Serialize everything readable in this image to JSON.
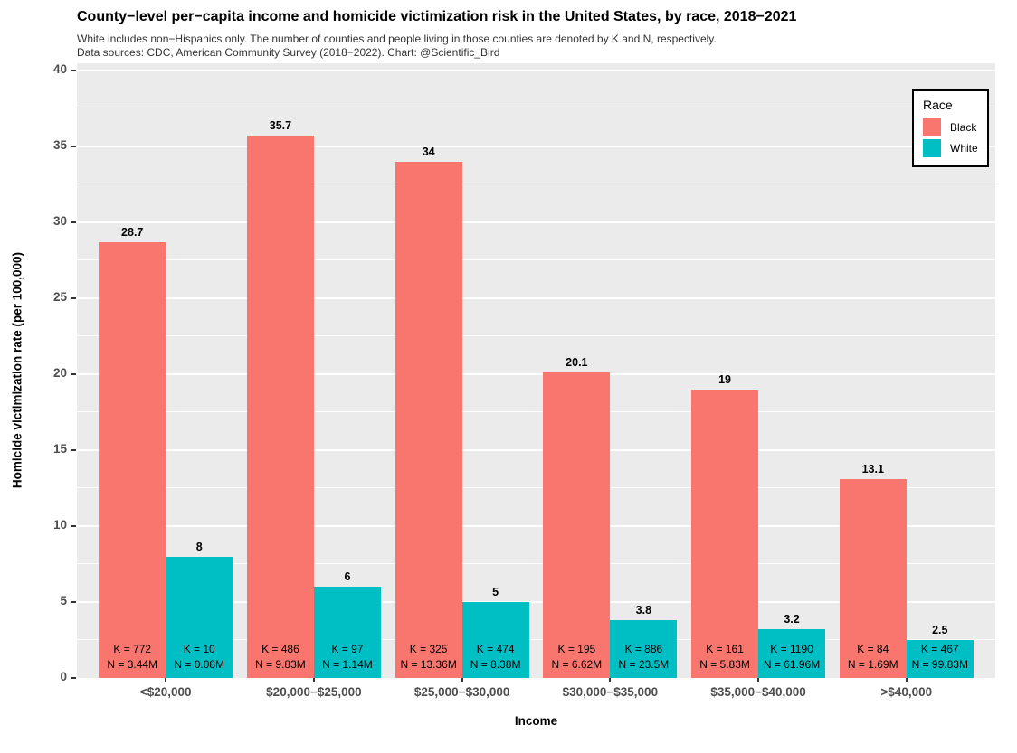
{
  "header": {
    "title": "County−level per−capita income and homicide victimization risk in the United States, by race, 2018−2021",
    "subtitle_line1": "White includes non−Hispanics only. The number of counties and people living in those counties are denoted by K and N, respectively.",
    "subtitle_line2": "Data sources: CDC, American Community Survey (2018−2022). Chart: @Scientific_Bird"
  },
  "legend": {
    "title": "Race",
    "items": [
      {
        "label": "Black",
        "color": "#F8766D"
      },
      {
        "label": "White",
        "color": "#00BFC4"
      }
    ]
  },
  "colors": {
    "plot_background": "#EBEBEB",
    "gridline": "#ffffff",
    "axis_text": "#4d4d4d",
    "black_series": "#F8766D",
    "white_series": "#00BFC4"
  },
  "chart_data": {
    "type": "bar",
    "title": "County−level per−capita income and homicide victimization risk in the United States, by race, 2018−2021",
    "xlabel": "Income",
    "ylabel": "Homicide victimization rate (per 100,000)",
    "ylim": [
      0,
      40
    ],
    "yticks": [
      0,
      5,
      10,
      15,
      20,
      25,
      30,
      35,
      40
    ],
    "minor_grid_step": 2.5,
    "grid": true,
    "legend_position": "top-right-inside",
    "categories": [
      "<$20,000",
      "$20,000−$25,000",
      "$25,000−$30,000",
      "$30,000−$35,000",
      "$35,000−$40,000",
      ">$40,000"
    ],
    "series": [
      {
        "name": "Black",
        "color": "#F8766D",
        "points": [
          {
            "value": 28.7,
            "value_label": "28.7",
            "k_label": "K = 772",
            "n_label": "N = 3.44M"
          },
          {
            "value": 35.7,
            "value_label": "35.7",
            "k_label": "K = 486",
            "n_label": "N = 9.83M"
          },
          {
            "value": 34,
            "value_label": "34",
            "k_label": "K = 325",
            "n_label": "N = 13.36M"
          },
          {
            "value": 20.1,
            "value_label": "20.1",
            "k_label": "K = 195",
            "n_label": "N = 6.62M"
          },
          {
            "value": 19,
            "value_label": "19",
            "k_label": "K = 161",
            "n_label": "N = 5.83M"
          },
          {
            "value": 13.1,
            "value_label": "13.1",
            "k_label": "K = 84",
            "n_label": "N = 1.69M"
          }
        ]
      },
      {
        "name": "White",
        "color": "#00BFC4",
        "points": [
          {
            "value": 8,
            "value_label": "8",
            "k_label": "K = 10",
            "n_label": "N = 0.08M"
          },
          {
            "value": 6,
            "value_label": "6",
            "k_label": "K = 97",
            "n_label": "N = 1.14M"
          },
          {
            "value": 5,
            "value_label": "5",
            "k_label": "K = 474",
            "n_label": "N = 8.38M"
          },
          {
            "value": 3.8,
            "value_label": "3.8",
            "k_label": "K = 886",
            "n_label": "N = 23.5M"
          },
          {
            "value": 3.2,
            "value_label": "3.2",
            "k_label": "K = 1190",
            "n_label": "N = 61.96M"
          },
          {
            "value": 2.5,
            "value_label": "2.5",
            "k_label": "K = 467",
            "n_label": "N = 99.83M"
          }
        ]
      }
    ]
  }
}
